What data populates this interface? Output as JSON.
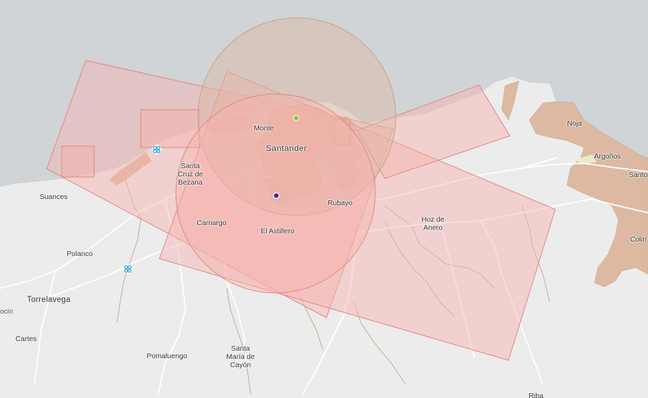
{
  "map": {
    "colors": {
      "sea": "#d0d4d6",
      "land": "#ececec",
      "urban": "#dcb9a0",
      "roads": "#ffffff",
      "rivers": "#c9a885",
      "zone_fill": "#f6b2ad",
      "zone_stroke": "#e4837c",
      "buffer_circle_fill": "#dbb8a2",
      "buffer_circle_stroke": "#c9a080",
      "point_green": "#9bc43b",
      "point_purple": "#3d2d8e",
      "heliport_icon": "#2aa5d6"
    },
    "places": {
      "santander": "Santander",
      "monte": "Monte",
      "santa_cruz": "Santa\nCruz de\nBezana",
      "suances": "Suances",
      "camargo": "Camargo",
      "el_astillero": "El Astillero",
      "rubayo": "Rubayo",
      "hoz_de_anero": "Hoz de\nAnero",
      "polanco": "Polanco",
      "torrelavega": "Torrelavega",
      "ocin": "ocín",
      "cartes": "Cartes",
      "pomaluengo": "Pomaluengo",
      "santa_maria": "Santa\nMaría de\nCayón",
      "noja": "Noja",
      "argonos": "Argoños",
      "santo": "Santo",
      "colin": "Colin",
      "riba": "Riba"
    },
    "markers": {
      "heliport_1": "heliport-icon",
      "heliport_2": "heliport-icon",
      "point_green": "green-point",
      "point_purple": "purple-point"
    }
  }
}
